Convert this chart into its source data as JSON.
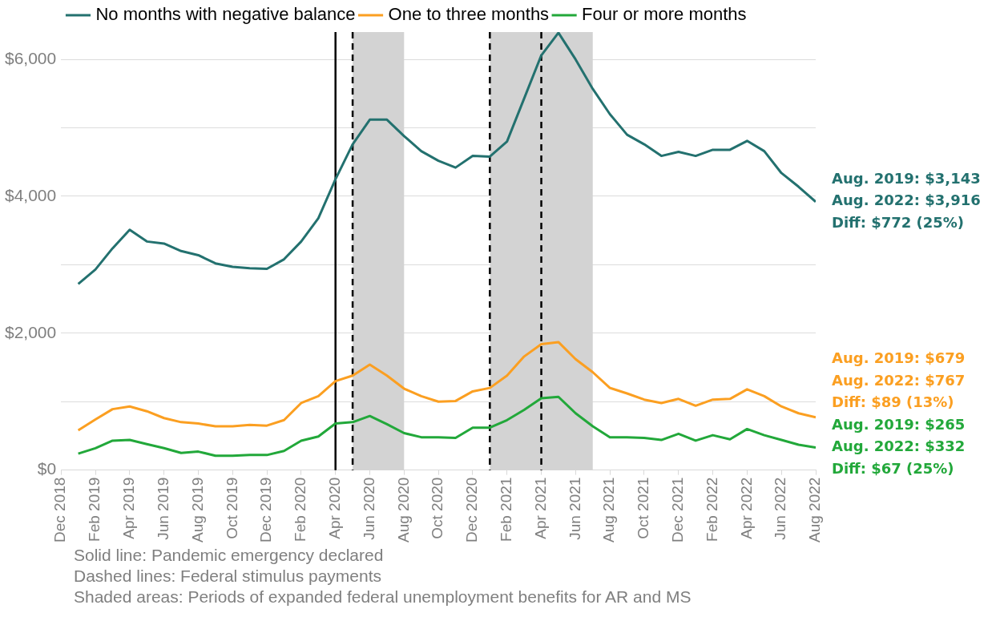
{
  "chart_data": {
    "type": "line",
    "x": [
      "2019-01",
      "2019-02",
      "2019-03",
      "2019-04",
      "2019-05",
      "2019-06",
      "2019-07",
      "2019-08",
      "2019-09",
      "2019-10",
      "2019-11",
      "2019-12",
      "2020-01",
      "2020-02",
      "2020-03",
      "2020-04",
      "2020-05",
      "2020-06",
      "2020-07",
      "2020-08",
      "2020-09",
      "2020-10",
      "2020-11",
      "2020-12",
      "2021-01",
      "2021-02",
      "2021-03",
      "2021-04",
      "2021-05",
      "2021-06",
      "2021-07",
      "2021-08",
      "2021-09",
      "2021-10",
      "2021-11",
      "2021-12",
      "2022-01",
      "2022-02",
      "2022-03",
      "2022-04",
      "2022-05",
      "2022-06",
      "2022-07",
      "2022-08"
    ],
    "series": [
      {
        "name": "No months with negative balance",
        "color": "#23716f",
        "values": [
          2720,
          2930,
          3240,
          3510,
          3340,
          3310,
          3200,
          3140,
          3020,
          2970,
          2950,
          2940,
          3080,
          3340,
          3680,
          4250,
          4760,
          5120,
          5120,
          4880,
          4660,
          4520,
          4420,
          4590,
          4580,
          4800,
          5430,
          6060,
          6390,
          6000,
          5570,
          5200,
          4900,
          4760,
          4590,
          4650,
          4590,
          4680,
          4680,
          4810,
          4660,
          4340,
          4140,
          3920
        ]
      },
      {
        "name": "One to three months",
        "color": "#fb9f21",
        "values": [
          580,
          740,
          890,
          930,
          860,
          760,
          700,
          680,
          640,
          640,
          660,
          650,
          730,
          980,
          1080,
          1300,
          1380,
          1540,
          1380,
          1190,
          1080,
          1000,
          1010,
          1150,
          1200,
          1380,
          1660,
          1840,
          1870,
          1620,
          1430,
          1200,
          1120,
          1030,
          980,
          1040,
          940,
          1030,
          1040,
          1180,
          1080,
          930,
          830,
          770
        ]
      },
      {
        "name": "Four or more months",
        "color": "#22a83a",
        "values": [
          240,
          320,
          430,
          440,
          380,
          320,
          250,
          270,
          210,
          210,
          220,
          220,
          280,
          430,
          490,
          680,
          700,
          790,
          670,
          540,
          480,
          480,
          470,
          620,
          620,
          730,
          880,
          1050,
          1070,
          830,
          640,
          480,
          480,
          470,
          440,
          530,
          430,
          510,
          450,
          600,
          510,
          440,
          370,
          330
        ]
      }
    ],
    "xlim": [
      "2018-12",
      "2022-08"
    ],
    "xticks": [
      {
        "value": "2018-12",
        "label": "Dec 2018"
      },
      {
        "value": "2019-02",
        "label": "Feb 2019"
      },
      {
        "value": "2019-04",
        "label": "Apr 2019"
      },
      {
        "value": "2019-06",
        "label": "Jun 2019"
      },
      {
        "value": "2019-08",
        "label": "Aug 2019"
      },
      {
        "value": "2019-10",
        "label": "Oct 2019"
      },
      {
        "value": "2019-12",
        "label": "Dec 2019"
      },
      {
        "value": "2020-02",
        "label": "Feb 2020"
      },
      {
        "value": "2020-04",
        "label": "Apr 2020"
      },
      {
        "value": "2020-06",
        "label": "Jun 2020"
      },
      {
        "value": "2020-08",
        "label": "Aug 2020"
      },
      {
        "value": "2020-10",
        "label": "Oct 2020"
      },
      {
        "value": "2020-12",
        "label": "Dec 2020"
      },
      {
        "value": "2021-02",
        "label": "Feb 2021"
      },
      {
        "value": "2021-04",
        "label": "Apr 2021"
      },
      {
        "value": "2021-06",
        "label": "Jun 2021"
      },
      {
        "value": "2021-08",
        "label": "Aug 2021"
      },
      {
        "value": "2021-10",
        "label": "Oct 2021"
      },
      {
        "value": "2021-12",
        "label": "Dec 2021"
      },
      {
        "value": "2022-02",
        "label": "Feb 2022"
      },
      {
        "value": "2022-04",
        "label": "Apr 2022"
      },
      {
        "value": "2022-06",
        "label": "Jun 2022"
      },
      {
        "value": "2022-08",
        "label": "Aug 2022"
      }
    ],
    "ylim": [
      0,
      6400
    ],
    "yticks": [
      {
        "value": 0,
        "label": "$0"
      },
      {
        "value": 1000,
        "label": null
      },
      {
        "value": 2000,
        "label": "$2,000"
      },
      {
        "value": 3000,
        "label": null
      },
      {
        "value": 4000,
        "label": "$4,000"
      },
      {
        "value": 5000,
        "label": null
      },
      {
        "value": 6000,
        "label": "$6,000"
      }
    ],
    "grid": "y",
    "legend": "top",
    "line_style": "solid",
    "marker": "none",
    "ref_lines": [
      {
        "axis": "x",
        "value": "2020-04",
        "color": "#000000",
        "line_style": "solid"
      },
      {
        "axis": "x",
        "value": "2020-05",
        "color": "#000000",
        "line_style": "dashed"
      },
      {
        "axis": "x",
        "value": "2021-01",
        "color": "#000000",
        "line_style": "dashed"
      },
      {
        "axis": "x",
        "value": "2021-04",
        "color": "#000000",
        "line_style": "dashed"
      }
    ],
    "bands": [
      {
        "axis": "x",
        "from": "2020-05",
        "to": "2020-08",
        "color": "#d3d3d3"
      },
      {
        "axis": "x",
        "from": "2021-01",
        "to": "2021-07",
        "color": "#d3d3d3"
      }
    ],
    "annotations": [
      "Aug. 2019: $3,143",
      "Aug. 2022: $3,916",
      "Diff: $772 (25%)",
      "Aug. 2019: $679",
      "Aug. 2022: $767",
      "Diff: $89 (13%)",
      "Aug. 2019: $265",
      "Aug. 2022: $332",
      "Diff: $67 (25%)",
      "Solid line: Pandemic emergency declared",
      "Dashed lines: Federal stimulus payments",
      "Shaded areas: Periods of expanded federal unemployment benefits for AR and MS"
    ]
  }
}
